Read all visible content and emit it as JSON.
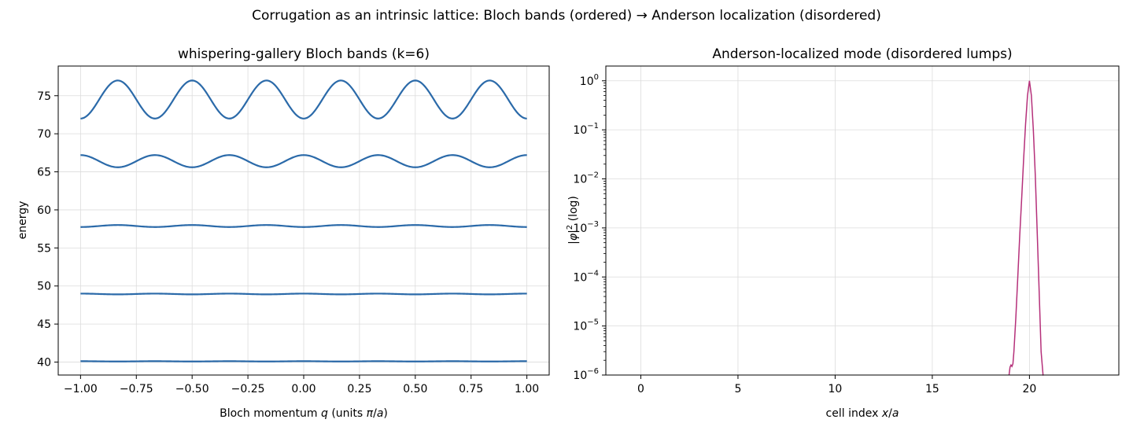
{
  "suptitle": "Corrugation as an intrinsic lattice: Bloch bands (ordered) → Anderson localization (disordered)",
  "colors": {
    "bands": "#2b6aa9",
    "mode": "#b5307a"
  },
  "chart_data": [
    {
      "type": "line",
      "title": "whispering-gallery Bloch bands (k=6)",
      "xlabel": "Bloch momentum q (units π/a)",
      "ylabel": "energy",
      "xlim": [
        -1.1,
        1.1
      ],
      "ylim": [
        38.3,
        78.9
      ],
      "xticks": [
        -1.0,
        -0.75,
        -0.5,
        -0.25,
        0.0,
        0.25,
        0.5,
        0.75,
        1.0
      ],
      "xtick_labels": [
        "−1.00",
        "−0.75",
        "−0.50",
        "−0.25",
        "0.00",
        "0.25",
        "0.50",
        "0.75",
        "1.00"
      ],
      "yticks": [
        40,
        45,
        50,
        55,
        60,
        65,
        70,
        75
      ],
      "ytick_labels": [
        "40",
        "45",
        "50",
        "55",
        "60",
        "65",
        "70",
        "75"
      ],
      "grid": true,
      "period_q": 0.3333,
      "series": [
        {
          "band": 1,
          "mean": 40.1,
          "amplitude": 0.02,
          "phase": "max-at-0"
        },
        {
          "band": 2,
          "mean": 48.95,
          "amplitude": 0.05,
          "phase": "max-at-0"
        },
        {
          "band": 3,
          "mean": 57.88,
          "amplitude": 0.13,
          "phase": "min-at-0"
        },
        {
          "band": 4,
          "mean": 66.4,
          "amplitude": 0.8,
          "phase": "max-at-0"
        },
        {
          "band": 5,
          "mean": 74.5,
          "amplitude": 2.5,
          "phase": "min-at-0"
        }
      ]
    },
    {
      "type": "line",
      "title": "Anderson-localized mode (disordered lumps)",
      "xlabel": "cell index x/a",
      "ylabel": "|φ|² (log)",
      "yscale": "log",
      "xlim": [
        -1.8,
        24.6
      ],
      "ylim": [
        1e-06,
        2
      ],
      "xticks": [
        0,
        5,
        10,
        15,
        20
      ],
      "xtick_labels": [
        "0",
        "5",
        "10",
        "15",
        "20"
      ],
      "yticks": [
        1e-06,
        1e-05,
        0.0001,
        0.001,
        0.01,
        0.1,
        1
      ],
      "ytick_exponents": [
        "−6",
        "−5",
        "−4",
        "−3",
        "−2",
        "−1",
        "0"
      ],
      "grid": true,
      "series": [
        {
          "x": [
            18.95,
            19.0,
            19.05,
            19.1,
            19.15,
            19.2,
            19.3,
            19.4,
            19.5,
            19.6,
            19.7,
            19.8,
            19.9,
            20.0,
            20.1,
            20.2,
            20.3,
            20.4,
            20.5,
            20.6,
            20.7
          ],
          "y": [
            1e-06,
            1.45e-06,
            1.6e-06,
            1.5e-06,
            1.7e-06,
            3e-06,
            1.5e-05,
            0.0001,
            0.0007,
            0.004,
            0.025,
            0.13,
            0.5,
            1.0,
            0.5,
            0.1,
            0.012,
            0.0008,
            5e-05,
            3e-06,
            1e-06
          ]
        }
      ]
    }
  ]
}
